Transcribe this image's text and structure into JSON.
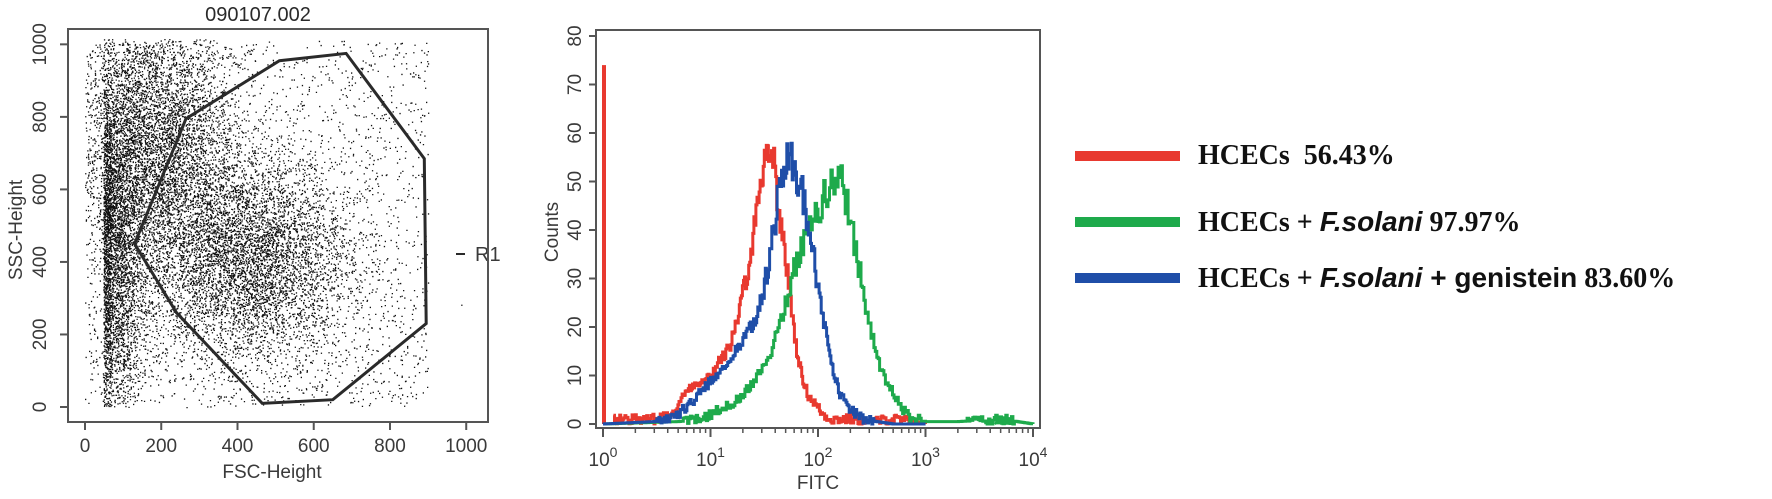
{
  "chart_data": [
    {
      "type": "scatter",
      "title": "090107.002",
      "xlabel": "FSC-Height",
      "ylabel": "SSC-Height",
      "xlim": [
        0,
        1023
      ],
      "ylim": [
        0,
        1023
      ],
      "xticks": [
        "0",
        "200",
        "400",
        "600",
        "800",
        "1000"
      ],
      "yticks": [
        "0",
        "200",
        "400",
        "600",
        "800",
        "1000"
      ],
      "gate": {
        "label": "R1",
        "vertices": [
          [
            265,
            795
          ],
          [
            510,
            955
          ],
          [
            685,
            975
          ],
          [
            890,
            685
          ],
          [
            895,
            230
          ],
          [
            650,
            20
          ],
          [
            465,
            10
          ],
          [
            240,
            260
          ],
          [
            130,
            450
          ]
        ]
      },
      "populations": [
        {
          "name": "",
          "cx": 78,
          "cy": 430,
          "sx": 40,
          "sy": 260
        },
        {
          "name": "",
          "cx": 430,
          "cy": 410,
          "sx": 130,
          "sy": 140
        },
        {
          "name": "",
          "cx": 190,
          "cy": 720,
          "sx": 100,
          "sy": 190
        }
      ],
      "grid": false
    },
    {
      "type": "line",
      "xlabel": "FITC",
      "ylabel": "Counts",
      "xscale": "log",
      "xlim": [
        1,
        10000
      ],
      "ylim": [
        0,
        80
      ],
      "xticks": [
        "10^0",
        "10^1",
        "10^2",
        "10^3",
        "10^4"
      ],
      "yticks": [
        "0",
        "10",
        "20",
        "30",
        "40",
        "50",
        "60",
        "70",
        "80"
      ],
      "series": [
        {
          "name": "HCECs 56.43%",
          "color": "#e8392f",
          "x": [
            1,
            1.05,
            1.2,
            2,
            3,
            4,
            5,
            6,
            8,
            10,
            12,
            15,
            18,
            22,
            26,
            30,
            34,
            38,
            42,
            48,
            55,
            62,
            70,
            80,
            95,
            110,
            130,
            160,
            200,
            300,
            500,
            800,
            1000
          ],
          "y": [
            74,
            0,
            1,
            1,
            1,
            2,
            4,
            7,
            9,
            10,
            13,
            16,
            22,
            32,
            42,
            52,
            58,
            55,
            46,
            36,
            26,
            16,
            10,
            6,
            4,
            2,
            1,
            1,
            1,
            0.5,
            1,
            0.5,
            0
          ]
        },
        {
          "name": "HCECs + F.solani 97.97%",
          "color": "#1eaa4b",
          "x": [
            1,
            5,
            8,
            12,
            18,
            25,
            35,
            45,
            60,
            75,
            90,
            110,
            130,
            150,
            170,
            200,
            240,
            300,
            380,
            500,
            650,
            800,
            1000,
            2000,
            5000,
            10000
          ],
          "y": [
            0,
            0.5,
            1,
            3,
            5,
            9,
            14,
            22,
            32,
            39,
            42,
            46,
            50,
            51,
            49,
            42,
            32,
            20,
            11,
            6,
            2,
            1,
            0.5,
            0.5,
            1,
            0
          ],
          "mark_x": [
            5000
          ],
          "mark_y": [
            1
          ]
        },
        {
          "name": "HCECs + F.solani + genistein 83.60%",
          "color": "#1f4ea8",
          "x": [
            1,
            3,
            5,
            7,
            10,
            14,
            18,
            24,
            30,
            36,
            42,
            48,
            54,
            60,
            68,
            76,
            85,
            95,
            110,
            130,
            160,
            200,
            260,
            350,
            500,
            1000
          ],
          "y": [
            0,
            0.5,
            2,
            5,
            9,
            12,
            16,
            20,
            26,
            36,
            46,
            54,
            56,
            53,
            50,
            44,
            38,
            31,
            22,
            13,
            6,
            3,
            1,
            0.5,
            0,
            0
          ]
        }
      ],
      "grid": false
    }
  ],
  "legend": {
    "items": [
      {
        "color": "#e8392f",
        "prefix": "HCECs  56.43%",
        "italic": "",
        "middle": "",
        "suffix": ""
      },
      {
        "color": "#1eaa4b",
        "prefix": "HCECs + ",
        "italic": "F.solani",
        "middle": "",
        "suffix": " 97.97%"
      },
      {
        "color": "#1f4ea8",
        "prefix": "HCECs + ",
        "italic": "F.solani",
        "middle": " + genistein",
        "suffix": " 83.60%"
      }
    ]
  }
}
